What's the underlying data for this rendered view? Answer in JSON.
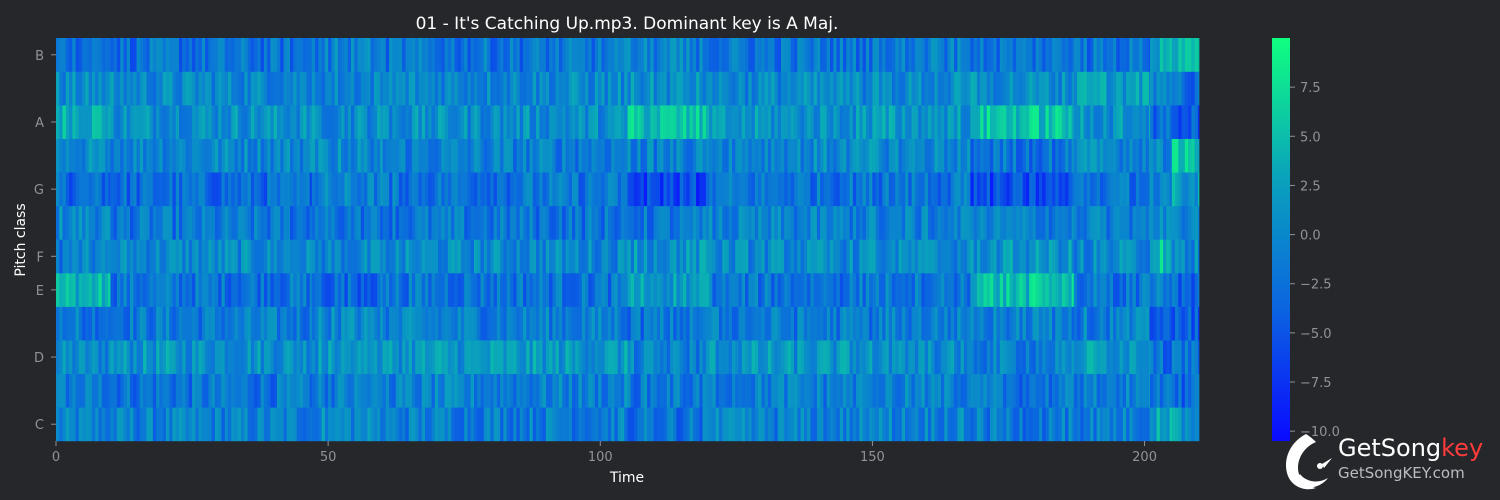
{
  "chart_data": {
    "type": "heatmap",
    "title": "01 - It's Catching Up.mp3. Dominant key is A Maj.",
    "xlabel": "Time",
    "ylabel": "Pitch class",
    "xlim": [
      0,
      210
    ],
    "x_ticks": [
      0,
      50,
      100,
      150,
      200
    ],
    "y_rows": [
      "C",
      "C#",
      "D",
      "D#",
      "E",
      "F",
      "F#",
      "G",
      "G#",
      "A",
      "A#",
      "B"
    ],
    "y_tick_labels": [
      {
        "row": 0,
        "label": "C"
      },
      {
        "row": 2,
        "label": "D"
      },
      {
        "row": 4,
        "label": "E"
      },
      {
        "row": 5,
        "label": "F"
      },
      {
        "row": 7,
        "label": "G"
      },
      {
        "row": 9,
        "label": "A"
      },
      {
        "row": 11,
        "label": "B"
      }
    ],
    "colorbar": {
      "range": [
        -10.5,
        10
      ],
      "ticks": [
        -10.0,
        -7.5,
        -5.0,
        -2.5,
        0.0,
        2.5,
        5.0,
        7.5
      ],
      "tick_labels": [
        "−10.0",
        "−7.5",
        "−5.0",
        "−2.5",
        "0.0",
        "2.5",
        "5.0",
        "7.5"
      ],
      "colormap": [
        "#0a0aff",
        "#0b66e0",
        "#0aa5ba",
        "#10ff80"
      ]
    },
    "segments": [
      {
        "start": 0,
        "end": 10,
        "levels": [
          -1,
          -1.5,
          0,
          -1.5,
          4,
          -1,
          0,
          -3,
          0,
          4,
          0,
          -2
        ]
      },
      {
        "start": 10,
        "end": 47,
        "levels": [
          -1,
          -2,
          1,
          -1.5,
          -2,
          0,
          -2,
          -3,
          0,
          1,
          0,
          -2.5
        ]
      },
      {
        "start": 47,
        "end": 60,
        "levels": [
          0,
          -1,
          1,
          0,
          -3,
          -0.5,
          -2,
          -1,
          0,
          0.5,
          -0.5,
          -1
        ]
      },
      {
        "start": 60,
        "end": 105,
        "levels": [
          -1,
          -1,
          1.5,
          -1,
          -2,
          0,
          -2,
          -2,
          -1,
          0.5,
          0,
          -2
        ]
      },
      {
        "start": 105,
        "end": 120,
        "levels": [
          -2,
          -1.5,
          -1,
          -2,
          2,
          1,
          -2,
          -6,
          -1,
          5,
          0.5,
          -1
        ]
      },
      {
        "start": 120,
        "end": 150,
        "levels": [
          -1,
          -1,
          1,
          -1.5,
          -2,
          0,
          -1,
          -2,
          0,
          1,
          0,
          -2
        ]
      },
      {
        "start": 150,
        "end": 168,
        "levels": [
          -0.5,
          -1,
          0,
          -1,
          -1.5,
          0,
          -1,
          -2,
          0,
          1.5,
          0,
          -1.5
        ]
      },
      {
        "start": 168,
        "end": 187,
        "levels": [
          -1.5,
          -2,
          -1,
          -1,
          5,
          1,
          -1,
          -6,
          -2,
          5.5,
          0.5,
          -2
        ]
      },
      {
        "start": 187,
        "end": 201,
        "levels": [
          -1,
          -1,
          2,
          -1,
          -2,
          0,
          -1,
          -2,
          0,
          1,
          2,
          -2
        ]
      },
      {
        "start": 201,
        "end": 205,
        "levels": [
          3,
          -1,
          -3,
          -4,
          -1,
          5,
          -1,
          0,
          0,
          -3,
          0,
          3
        ]
      },
      {
        "start": 205,
        "end": 210,
        "levels": [
          1,
          -3,
          -2,
          -4,
          -3,
          0,
          0,
          2,
          5,
          -4,
          -3,
          6
        ]
      }
    ]
  },
  "logo": {
    "name_main": "GetSong",
    "name_accent": "key",
    "url": "GetSongKEY.com"
  }
}
